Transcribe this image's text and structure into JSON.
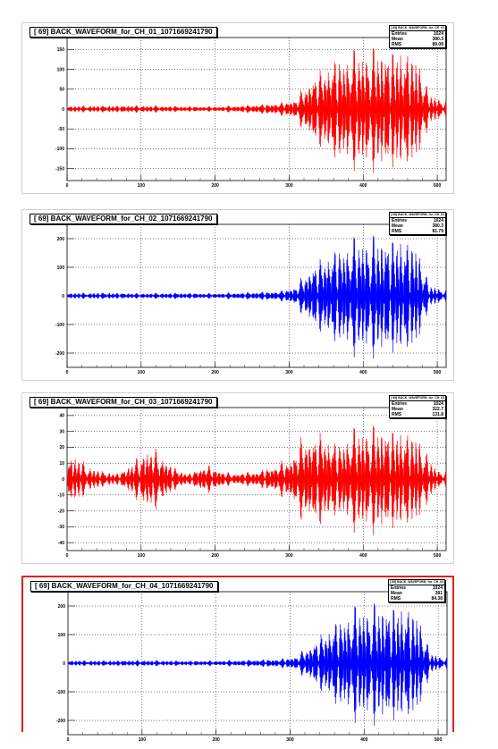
{
  "chart_data": [
    {
      "type": "line",
      "title": "[ 69] BACK_WAVEFORM_for_CH_01_1071669241790",
      "stats_header": "[ 69] BACK_WAVEFORM_for_CH_01_1071669241790",
      "stats": [
        {
          "label": "Entries",
          "value": "1024"
        },
        {
          "label": "Mean",
          "value": "380.3"
        },
        {
          "label": "RMS",
          "value": "89.08"
        }
      ],
      "color": "#ff0000",
      "xlim": [
        0,
        512
      ],
      "ylim": [
        -180,
        180
      ],
      "x_ticks": [
        0,
        100,
        200,
        300,
        400,
        500
      ],
      "y_ticks": [
        150,
        100,
        50,
        0,
        -50,
        -100,
        -150
      ],
      "envelope": [
        {
          "x": 0,
          "a": 8
        },
        {
          "x": 50,
          "a": 9
        },
        {
          "x": 100,
          "a": 10
        },
        {
          "x": 150,
          "a": 8
        },
        {
          "x": 200,
          "a": 7
        },
        {
          "x": 250,
          "a": 12
        },
        {
          "x": 290,
          "a": 18
        },
        {
          "x": 310,
          "a": 30
        },
        {
          "x": 330,
          "a": 90
        },
        {
          "x": 360,
          "a": 140
        },
        {
          "x": 390,
          "a": 160
        },
        {
          "x": 420,
          "a": 165
        },
        {
          "x": 450,
          "a": 160
        },
        {
          "x": 470,
          "a": 140
        },
        {
          "x": 480,
          "a": 110
        },
        {
          "x": 488,
          "a": 40
        },
        {
          "x": 500,
          "a": 30
        },
        {
          "x": 512,
          "a": 20
        }
      ]
    },
    {
      "type": "line",
      "title": "[ 69] BACK_WAVEFORM_for_CH_02_1071669241790",
      "stats_header": "[ 69] BACK_WAVEFORM_for_CH_02_1071669241790",
      "stats": [
        {
          "label": "Entries",
          "value": "1024"
        },
        {
          "label": "Mean",
          "value": "380.3"
        },
        {
          "label": "RMS",
          "value": "81.79"
        }
      ],
      "color": "#0000ff",
      "xlim": [
        0,
        512
      ],
      "ylim": [
        -250,
        250
      ],
      "x_ticks": [
        0,
        100,
        200,
        300,
        400,
        500
      ],
      "y_ticks": [
        200,
        100,
        0,
        -100,
        -200
      ],
      "envelope": [
        {
          "x": 0,
          "a": 10
        },
        {
          "x": 50,
          "a": 12
        },
        {
          "x": 100,
          "a": 10
        },
        {
          "x": 150,
          "a": 12
        },
        {
          "x": 200,
          "a": 10
        },
        {
          "x": 250,
          "a": 15
        },
        {
          "x": 290,
          "a": 20
        },
        {
          "x": 310,
          "a": 40
        },
        {
          "x": 330,
          "a": 120
        },
        {
          "x": 360,
          "a": 180
        },
        {
          "x": 390,
          "a": 220
        },
        {
          "x": 420,
          "a": 225
        },
        {
          "x": 450,
          "a": 215
        },
        {
          "x": 470,
          "a": 190
        },
        {
          "x": 480,
          "a": 140
        },
        {
          "x": 488,
          "a": 40
        },
        {
          "x": 500,
          "a": 30
        },
        {
          "x": 512,
          "a": 20
        }
      ]
    },
    {
      "type": "line",
      "title": "[ 69] BACK_WAVEFORM_for_CH_03_1071669241790",
      "stats_header": "[ 69] BACK_WAVEFORM_for_CH_03_1071669241790",
      "stats": [
        {
          "label": "Entries",
          "value": "1024"
        },
        {
          "label": "Mean",
          "value": "322.7"
        },
        {
          "label": "RMS",
          "value": "131.8"
        }
      ],
      "color": "#ff0000",
      "xlim": [
        0,
        512
      ],
      "ylim": [
        -45,
        45
      ],
      "x_ticks": [
        0,
        100,
        200,
        300,
        400,
        500
      ],
      "y_ticks": [
        40,
        30,
        20,
        10,
        0,
        -10,
        -20,
        -30,
        -40
      ],
      "envelope": [
        {
          "x": 0,
          "a": 15
        },
        {
          "x": 15,
          "a": 14
        },
        {
          "x": 30,
          "a": 8
        },
        {
          "x": 50,
          "a": 5
        },
        {
          "x": 70,
          "a": 4
        },
        {
          "x": 90,
          "a": 12
        },
        {
          "x": 110,
          "a": 22
        },
        {
          "x": 125,
          "a": 18
        },
        {
          "x": 145,
          "a": 8
        },
        {
          "x": 165,
          "a": 4
        },
        {
          "x": 185,
          "a": 10
        },
        {
          "x": 200,
          "a": 8
        },
        {
          "x": 220,
          "a": 4
        },
        {
          "x": 240,
          "a": 5
        },
        {
          "x": 260,
          "a": 6
        },
        {
          "x": 280,
          "a": 10
        },
        {
          "x": 300,
          "a": 14
        },
        {
          "x": 320,
          "a": 30
        },
        {
          "x": 345,
          "a": 33
        },
        {
          "x": 365,
          "a": 25
        },
        {
          "x": 390,
          "a": 35
        },
        {
          "x": 420,
          "a": 36
        },
        {
          "x": 450,
          "a": 33
        },
        {
          "x": 475,
          "a": 28
        },
        {
          "x": 488,
          "a": 14
        },
        {
          "x": 500,
          "a": 6
        },
        {
          "x": 512,
          "a": 5
        }
      ]
    },
    {
      "type": "line",
      "title": "[ 69] BACK_WAVEFORM_for_CH_04_1071669241790",
      "stats_header": "[ 69] BACK_WAVEFORM_for_CH_04_1071669241790",
      "stats": [
        {
          "label": "Entries",
          "value": "1024"
        },
        {
          "label": "Mean",
          "value": "381"
        },
        {
          "label": "RMS",
          "value": "84.38"
        }
      ],
      "color": "#0000ff",
      "xlim": [
        0,
        512
      ],
      "ylim": [
        -250,
        250
      ],
      "x_ticks": [
        0,
        100,
        200,
        300,
        400,
        500
      ],
      "y_ticks": [
        200,
        100,
        0,
        -100,
        -200
      ],
      "envelope": [
        {
          "x": 0,
          "a": 10
        },
        {
          "x": 50,
          "a": 10
        },
        {
          "x": 100,
          "a": 12
        },
        {
          "x": 150,
          "a": 10
        },
        {
          "x": 200,
          "a": 10
        },
        {
          "x": 250,
          "a": 14
        },
        {
          "x": 290,
          "a": 18
        },
        {
          "x": 310,
          "a": 30
        },
        {
          "x": 330,
          "a": 80
        },
        {
          "x": 360,
          "a": 160
        },
        {
          "x": 390,
          "a": 215
        },
        {
          "x": 420,
          "a": 225
        },
        {
          "x": 450,
          "a": 215
        },
        {
          "x": 470,
          "a": 190
        },
        {
          "x": 480,
          "a": 140
        },
        {
          "x": 488,
          "a": 40
        },
        {
          "x": 500,
          "a": 25
        },
        {
          "x": 512,
          "a": 20
        }
      ]
    }
  ]
}
